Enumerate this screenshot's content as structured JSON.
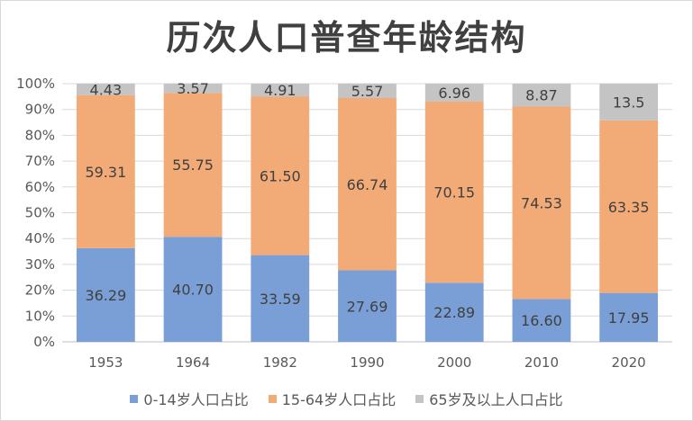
{
  "chart_data": {
    "type": "stacked-bar-100",
    "title": "历次人口普查年龄结构",
    "categories": [
      "1953",
      "1964",
      "1982",
      "1990",
      "2000",
      "2010",
      "2020"
    ],
    "series": [
      {
        "name": "0-14岁人口占比",
        "color": "#7a9fd6",
        "values": [
          "36.29",
          "40.70",
          "33.59",
          "27.69",
          "22.89",
          "16.60",
          "17.95"
        ]
      },
      {
        "name": "15-64岁人口占比",
        "color": "#f2aa77",
        "values": [
          "59.31",
          "55.75",
          "61.50",
          "66.74",
          "70.15",
          "74.53",
          "63.35"
        ]
      },
      {
        "name": "65岁及以上人口占比",
        "color": "#c4c4c4",
        "values": [
          "4.43",
          "3.57",
          "4.91",
          "5.57",
          "6.96",
          "8.87",
          "13.5"
        ]
      }
    ],
    "ylim": [
      0,
      100
    ],
    "yticks": [
      "0%",
      "10%",
      "20%",
      "30%",
      "40%",
      "50%",
      "60%",
      "70%",
      "80%",
      "90%",
      "100%"
    ],
    "xlabel": "",
    "ylabel": "",
    "legend": "bottom"
  }
}
